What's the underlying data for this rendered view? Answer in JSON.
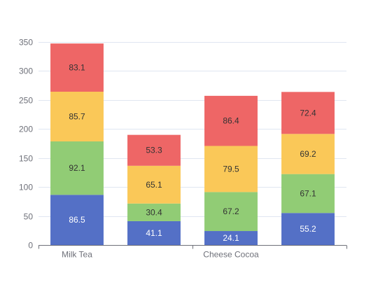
{
  "chart_data": {
    "type": "bar",
    "stacked": true,
    "categories": [
      "Milk Tea",
      "",
      "Cheese Cocoa",
      ""
    ],
    "ylim": [
      0,
      350
    ],
    "yticks": [
      0,
      50,
      100,
      150,
      200,
      250,
      300,
      350
    ],
    "grid": true,
    "legend": "none",
    "series": [
      {
        "color": "#5470c6",
        "label_color": "#ffffff",
        "values": [
          86.5,
          41.1,
          24.1,
          55.2
        ]
      },
      {
        "color": "#91cc75",
        "label_color": "#333333",
        "values": [
          92.1,
          30.4,
          67.2,
          67.1
        ]
      },
      {
        "color": "#fac858",
        "label_color": "#333333",
        "values": [
          85.7,
          65.1,
          79.5,
          69.2
        ]
      },
      {
        "color": "#ee6666",
        "label_color": "#333333",
        "values": [
          83.1,
          53.3,
          86.4,
          72.4
        ]
      }
    ]
  }
}
